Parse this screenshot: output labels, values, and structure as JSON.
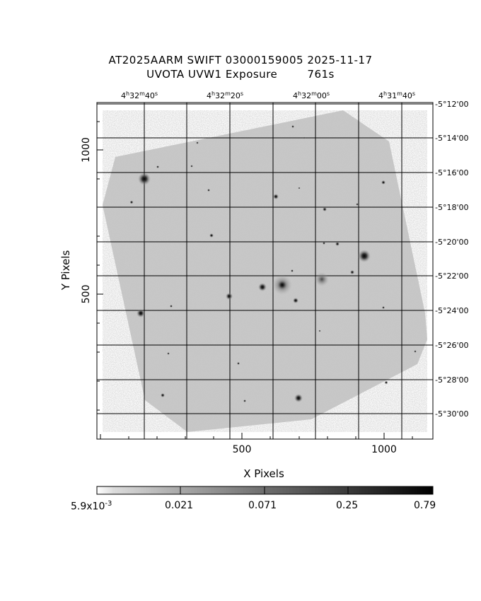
{
  "header": {
    "title_line1": "AT2025AARM SWIFT 03000159005 2025-11-17",
    "title_line2": "UVOTA UVW1 Exposure        761s"
  },
  "axes": {
    "x_label": "X Pixels",
    "y_label": "Y Pixels",
    "x_ticks": [
      "500",
      "1000"
    ],
    "y_ticks": [
      "1000",
      "500"
    ],
    "ra_ticks": [
      "4h32m40s",
      "4h32m20s",
      "4h32m00s",
      "4h31m40s"
    ],
    "dec_ticks": [
      "-5°12'00",
      "-5°14'00",
      "-5°16'00",
      "-5°18'00",
      "-5°20'00",
      "-5°22'00",
      "-5°24'00",
      "-5°26'00",
      "-5°28'00",
      "-5°30'00"
    ]
  },
  "colorbar": {
    "scale": "log",
    "min_label": "5.9x10",
    "min_exponent": "-3",
    "labels": [
      "0.021",
      "0.071",
      "0.25",
      "0.79"
    ]
  },
  "image": {
    "colormap": "inverted grayscale",
    "field_shape": "rotated-square",
    "grid": true
  }
}
